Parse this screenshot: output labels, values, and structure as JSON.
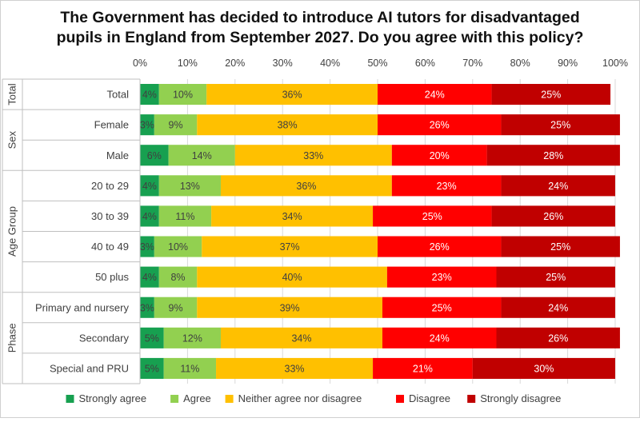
{
  "chart_data": {
    "type": "bar",
    "orientation": "horizontal",
    "stacked": true,
    "percent_axis": true,
    "title_lines": [
      "The Government has decided to introduce AI tutors for disadvantaged",
      "pupils in England from September 2027. Do you agree with this policy?"
    ],
    "x_ticks": [
      "0%",
      "10%",
      "20%",
      "30%",
      "40%",
      "50%",
      "60%",
      "70%",
      "80%",
      "90%",
      "100%"
    ],
    "xlim": [
      0,
      100
    ],
    "grid": true,
    "legend_position": "bottom",
    "series": [
      {
        "name": "Strongly agree",
        "color": "#17A050"
      },
      {
        "name": "Agree",
        "color": "#92D050"
      },
      {
        "name": "Neither agree nor disagree",
        "color": "#FFC000"
      },
      {
        "name": "Disagree",
        "color": "#FF0000"
      },
      {
        "name": "Strongly disagree",
        "color": "#C00000"
      }
    ],
    "groups": [
      {
        "name": "Total",
        "rows": [
          {
            "label": "Total",
            "values": [
              4,
              10,
              36,
              24,
              25
            ]
          }
        ]
      },
      {
        "name": "Sex",
        "rows": [
          {
            "label": "Female",
            "values": [
              3,
              9,
              38,
              26,
              25
            ]
          },
          {
            "label": "Male",
            "values": [
              6,
              14,
              33,
              20,
              28
            ]
          }
        ]
      },
      {
        "name": "Age Group",
        "rows": [
          {
            "label": "20 to 29",
            "values": [
              4,
              13,
              36,
              23,
              24
            ]
          },
          {
            "label": "30 to 39",
            "values": [
              4,
              11,
              34,
              25,
              26
            ]
          },
          {
            "label": "40 to 49",
            "values": [
              3,
              10,
              37,
              26,
              25
            ]
          },
          {
            "label": "50 plus",
            "values": [
              4,
              8,
              40,
              23,
              25
            ]
          }
        ]
      },
      {
        "name": "Phase",
        "rows": [
          {
            "label": "Primary and nursery",
            "values": [
              3,
              9,
              39,
              25,
              24
            ]
          },
          {
            "label": "Secondary",
            "values": [
              5,
              12,
              34,
              24,
              26
            ]
          },
          {
            "label": "Special and PRU",
            "values": [
              5,
              11,
              33,
              21,
              30
            ]
          }
        ]
      }
    ]
  }
}
